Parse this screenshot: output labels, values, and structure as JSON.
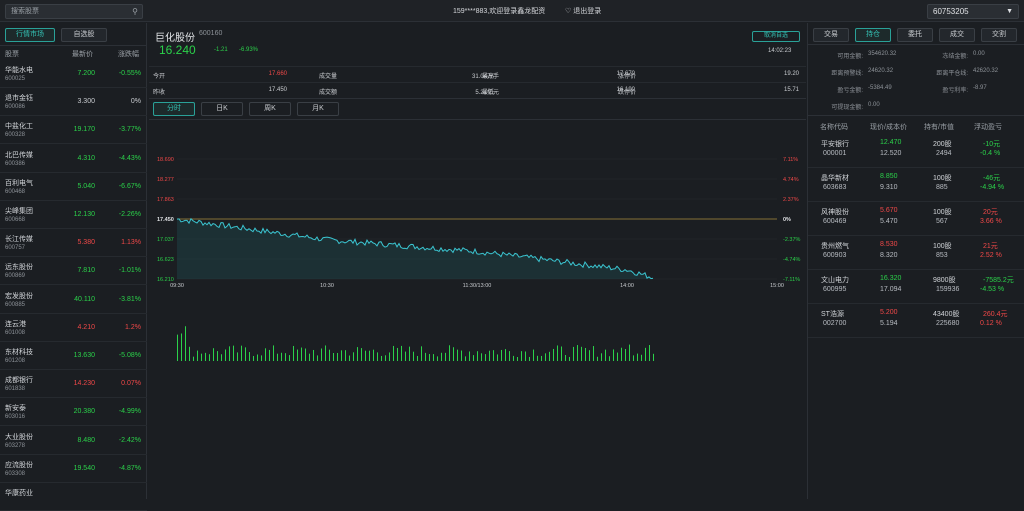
{
  "topbar": {
    "search_placeholder": "搜索股票",
    "welcome": "159****883,欢迎登录鑫龙配资",
    "logout": "退出登录",
    "account": "60753205"
  },
  "left": {
    "tabs": [
      "行情市场",
      "自选股"
    ],
    "headers": [
      "股票",
      "最新价",
      "涨跌幅"
    ],
    "stocks": [
      {
        "name": "华能水电",
        "code": "600025",
        "price": "7.200",
        "change": "-0.55%",
        "dir": "dn"
      },
      {
        "name": "退市金钰",
        "code": "600086",
        "price": "3.300",
        "change": "0%",
        "dir": "fl"
      },
      {
        "name": "中盐化工",
        "code": "600328",
        "price": "19.170",
        "change": "-3.77%",
        "dir": "dn"
      },
      {
        "name": "北巴传媒",
        "code": "600386",
        "price": "4.310",
        "change": "-4.43%",
        "dir": "dn"
      },
      {
        "name": "百利电气",
        "code": "600468",
        "price": "5.040",
        "change": "-6.67%",
        "dir": "dn"
      },
      {
        "name": "尖峰集团",
        "code": "600668",
        "price": "12.130",
        "change": "-2.26%",
        "dir": "dn"
      },
      {
        "name": "长江传媒",
        "code": "600757",
        "price": "5.380",
        "change": "1.13%",
        "dir": "up"
      },
      {
        "name": "远东股份",
        "code": "600869",
        "price": "7.810",
        "change": "-1.01%",
        "dir": "dn"
      },
      {
        "name": "宏发股份",
        "code": "600885",
        "price": "40.110",
        "change": "-3.81%",
        "dir": "dn"
      },
      {
        "name": "连云港",
        "code": "601008",
        "price": "4.210",
        "change": "1.2%",
        "dir": "up"
      },
      {
        "name": "东材科技",
        "code": "601208",
        "price": "13.630",
        "change": "-5.08%",
        "dir": "dn"
      },
      {
        "name": "成都银行",
        "code": "601838",
        "price": "14.230",
        "change": "0.07%",
        "dir": "up"
      },
      {
        "name": "新安泰",
        "code": "603016",
        "price": "20.380",
        "change": "-4.99%",
        "dir": "dn"
      },
      {
        "name": "大业股份",
        "code": "603278",
        "price": "8.480",
        "change": "-2.42%",
        "dir": "dn"
      },
      {
        "name": "应流股份",
        "code": "603308",
        "price": "19.540",
        "change": "-4.87%",
        "dir": "dn"
      },
      {
        "name": "华康药业",
        "code": "",
        "price": "",
        "change": "",
        "dir": "up"
      }
    ]
  },
  "middle": {
    "name": "巨化股份",
    "code": "600160",
    "price": "16.240",
    "change": "-1.21",
    "change_pct": "-6.93%",
    "cancel_fav": "取消自选",
    "time": "14:02:23",
    "quote_rows": [
      [
        [
          "今开",
          "17.660",
          "up"
        ],
        [
          "成交量",
          "31.04万手",
          "fl"
        ],
        [
          "最高",
          "17.670",
          "fl"
        ],
        [
          "涨停价",
          "19.20",
          "fl"
        ]
      ],
      [
        [
          "昨收",
          "17.450",
          "fl"
        ],
        [
          "成交额",
          "5.21亿元",
          "fl"
        ],
        [
          "最低",
          "16.190",
          "fl"
        ],
        [
          "跌停价",
          "15.71",
          "fl"
        ]
      ]
    ],
    "period_tabs": [
      "分时",
      "日K",
      "周K",
      "月K"
    ],
    "chart_labels": {
      "y_left": [
        "18.690",
        "18.277",
        "17.863",
        "17.450",
        "17.037",
        "16.623",
        "16.210"
      ],
      "y_right": [
        "7.11%",
        "4.74%",
        "2.37%",
        "0%",
        "-2.37%",
        "-4.74%",
        "-7.11%"
      ],
      "x": [
        "09:30",
        "10:30",
        "11:30/13:00",
        "14:00",
        "15:00"
      ]
    }
  },
  "chart_data": {
    "type": "line",
    "x": [
      "09:30",
      "10:30",
      "11:30/13:00",
      "14:00",
      "15:00"
    ],
    "series": [
      {
        "values": [
          17.45,
          17.02,
          16.78,
          16.4,
          16.24
        ]
      }
    ],
    "ylim": [
      16.21,
      18.69
    ],
    "baseline": 17.45,
    "grid": true
  },
  "right": {
    "tabs": [
      "交易",
      "持仓",
      "委托",
      "成交",
      "交割"
    ],
    "funds": [
      [
        [
          "可用金额:",
          "354620.32"
        ],
        [
          "冻结金额:",
          "0.00"
        ]
      ],
      [
        [
          "距离预警线:",
          "24620.32"
        ],
        [
          "距离平仓线:",
          "42620.32"
        ]
      ],
      [
        [
          "盈亏金额:",
          "-5384.49"
        ],
        [
          "盈亏利率:",
          "-8.97"
        ]
      ],
      [
        [
          "可提现金额:",
          "0.00"
        ],
        [
          "",
          ""
        ]
      ]
    ],
    "hold_headers": [
      "名称代码",
      "现价/成本价",
      "持有/市值",
      "浮动盈亏"
    ],
    "holdings": [
      {
        "name": "平安银行",
        "code": "000001",
        "price": "12.470",
        "cost": "12.520",
        "qty": "200股",
        "value": "2494",
        "pl": "-10元",
        "pl_pct": "-0.4 %",
        "dir": "dn"
      },
      {
        "name": "晶华新材",
        "code": "603683",
        "price": "8.850",
        "cost": "9.310",
        "qty": "100股",
        "value": "885",
        "pl": "-46元",
        "pl_pct": "-4.94 %",
        "dir": "dn"
      },
      {
        "name": "风神股份",
        "code": "600469",
        "price": "5.670",
        "cost": "5.470",
        "qty": "100股",
        "value": "567",
        "pl": "20元",
        "pl_pct": "3.66 %",
        "dir": "up"
      },
      {
        "name": "贵州燃气",
        "code": "600903",
        "price": "8.530",
        "cost": "8.320",
        "qty": "100股",
        "value": "853",
        "pl": "21元",
        "pl_pct": "2.52 %",
        "dir": "up"
      },
      {
        "name": "文山电力",
        "code": "600995",
        "price": "16.320",
        "cost": "17.094",
        "qty": "9800股",
        "value": "159936",
        "pl": "-7585.2元",
        "pl_pct": "-4.53 %",
        "dir": "dn"
      },
      {
        "name": "ST浩源",
        "code": "002700",
        "price": "5.200",
        "cost": "5.194",
        "qty": "43400股",
        "value": "225680",
        "pl": "260.4元",
        "pl_pct": "0.12 %",
        "dir": "up"
      }
    ]
  }
}
